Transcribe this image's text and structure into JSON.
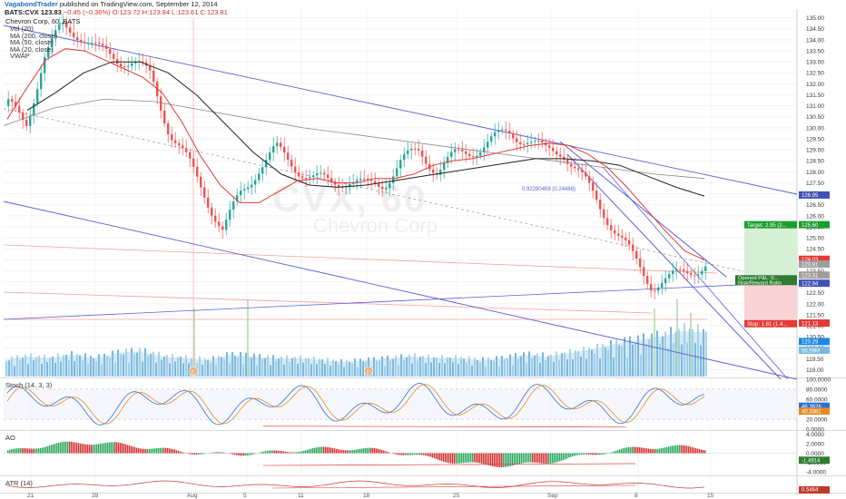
{
  "header": {
    "publisher": "VagabondTrader",
    "published_text": "published on TradingView.com, September 12, 2014",
    "symbol": "BATS:CVX",
    "last": "123.83",
    "change": "−0.45 (−0.36%)",
    "ohlc": "O:123.72 H:123.84 L:123.61 C:123.81"
  },
  "chart_title": "Chevron Corp, 60, BATS",
  "indicators": [
    "Vol (20)",
    "MA (200, close)",
    "MA (50, close)",
    "MA (20, close)",
    "VWAP"
  ],
  "watermark": {
    "symbol": "CVX, 60",
    "name": "Chevron Corp"
  },
  "pane_labels": {
    "stoch": "Stoch (14, 3, 3)",
    "ao": "AO",
    "atr": "ATR (14)"
  },
  "annotations": {
    "fib": "0.92280459 (0.24488)",
    "event_e": "E",
    "event_d": "D"
  },
  "price_axis": {
    "ticks": [
      "135.00",
      "134.50",
      "134.00",
      "133.50",
      "133.00",
      "132.50",
      "132.00",
      "131.50",
      "131.00",
      "130.50",
      "130.00",
      "129.50",
      "129.00",
      "128.50",
      "128.00",
      "127.50",
      "127.00",
      "126.50",
      "126.00",
      "125.50",
      "125.00",
      "124.50",
      "124.00",
      "123.50",
      "123.00",
      "122.50",
      "122.00",
      "121.50",
      "121.00",
      "120.50",
      "120.00",
      "119.50",
      "119.00"
    ],
    "flags": [
      {
        "text": "126.95",
        "color": "#3f51b5"
      },
      {
        "text": "125.60",
        "color": "#1b9e2e"
      },
      {
        "text": "124.03",
        "color": "#e53935"
      },
      {
        "text": "123.81",
        "color": "#9e9e9e"
      },
      {
        "text": "123.31",
        "color": "#9e9e9e"
      },
      {
        "text": "122.94",
        "color": "#3f51b5"
      },
      {
        "text": "121.13",
        "color": "#e53935"
      },
      {
        "text": "120.29",
        "color": "#1e88e5"
      },
      {
        "text": "56.59M",
        "color": "#7ab8de"
      }
    ]
  },
  "trade_box": {
    "target": "Target: 2.95 (2...",
    "open": "Opened P&L: 0...",
    "risk": "Risk/Reward Ratio",
    "stop": "Stop: 1.81 (1.4..."
  },
  "stoch_axis": {
    "ticks": [
      "100.0000",
      "80.0000",
      "60.0000",
      "40.0000",
      "20.0000",
      "0.0000"
    ],
    "flags": [
      "46.3626",
      "40.3381"
    ]
  },
  "ao_axis": {
    "ticks": [
      "4.0000",
      "2.0000",
      "0.0000",
      "-2.0000",
      "-4.0000"
    ],
    "flags": [
      "-1.4914"
    ]
  },
  "atr_axis": {
    "flags": [
      "0.5464"
    ]
  },
  "x_axis": {
    "ticks": [
      "21",
      "28",
      "Aug",
      "5",
      "11",
      "18",
      "25",
      "Sep",
      "8",
      "15"
    ]
  },
  "colors": {
    "up": "#26a69a",
    "down": "#ef5350",
    "ma20": "#e53935",
    "ma50": "#222222",
    "ma200": "#888888",
    "channel": "#5c5fd6",
    "volume": "#5ba8d8",
    "grid": "#eeeeee"
  },
  "chart_data": {
    "type": "line",
    "title": "Chevron Corp, 60, BATS",
    "symbol": "BATS:CVX",
    "ylim": [
      118.7,
      135.4
    ],
    "x_labels": [
      "21",
      "28",
      "Aug",
      "5",
      "11",
      "18",
      "25",
      "Sep",
      "8",
      "15"
    ],
    "series": [
      {
        "name": "Price (close, approx.)",
        "values": [
          131.0,
          130.2,
          133.2,
          134.6,
          134.3,
          133.5,
          133.2,
          133.0,
          132.3,
          129.9,
          128.5,
          127.0,
          125.3,
          127.0,
          128.2,
          129.0,
          128.3,
          127.7,
          127.5,
          127.7,
          127.3,
          127.5,
          128.5,
          128.9,
          128.1,
          128.7,
          129.0,
          129.4,
          129.8,
          129.5,
          128.9,
          129.0,
          127.8,
          126.6,
          125.3,
          124.0,
          122.9,
          123.1,
          123.5,
          123.8
        ]
      },
      {
        "name": "MA (20, close)",
        "values": [
          130.4,
          131.8,
          133.1,
          133.6,
          133.5,
          133.1,
          132.7,
          132.3,
          131.6,
          130.3,
          128.7,
          127.4,
          126.6,
          126.6,
          127.1,
          127.6,
          127.7,
          127.5,
          127.5,
          127.7,
          127.7,
          127.9,
          128.3,
          128.5,
          128.6,
          128.8,
          129.0,
          129.2,
          129.3,
          129.2,
          128.8,
          128.2,
          127.3,
          126.3,
          125.3,
          124.4,
          124.0
        ]
      },
      {
        "name": "MA (50, close)",
        "values": [
          130.8,
          131.6,
          132.5,
          133.0,
          133.0,
          132.5,
          131.5,
          130.2,
          128.9,
          127.9,
          127.4,
          127.3,
          127.4,
          127.6,
          127.8,
          128.0,
          128.2,
          128.4,
          128.6,
          128.6,
          128.5,
          128.3,
          127.8,
          127.3,
          126.9
        ]
      },
      {
        "name": "MA (200, close)",
        "values": [
          130.1,
          130.9,
          131.3,
          131.2,
          130.8,
          130.4,
          130.0,
          129.7,
          129.4,
          129.1,
          128.8,
          128.5,
          128.2,
          127.9,
          127.7
        ]
      },
      {
        "name": "Volume (relative)",
        "values": [
          0.9,
          1.1,
          1.0,
          1.2,
          1.0,
          1.3,
          1.4,
          1.1,
          1.0,
          0.9,
          1.2,
          1.1,
          1.0,
          1.0,
          0.9,
          0.8,
          0.9,
          1.0,
          1.1,
          1.0,
          1.0,
          0.9,
          1.0,
          1.2,
          1.1,
          1.3,
          1.5,
          1.8,
          2.0,
          2.2,
          2.5,
          2.4
        ]
      }
    ],
    "trendlines": [
      {
        "name": "channel upper",
        "from": [
          "start",
          133.8
        ],
        "to": [
          "end",
          127.2
        ]
      },
      {
        "name": "channel lower",
        "from": [
          "start",
          127.5
        ],
        "to": [
          "end",
          119.3
        ]
      },
      {
        "name": "descending channel upper",
        "from": [
          "Sep",
          129.9
        ],
        "to": [
          "15",
          124.0
        ]
      },
      {
        "name": "descending channel lower",
        "from": [
          "Sep",
          129.2
        ],
        "to": [
          "15",
          119.3
        ]
      }
    ],
    "trade": {
      "entry": 123.1,
      "target": 125.6,
      "stop": 121.1
    },
    "stoch": {
      "ylim": [
        0,
        100
      ],
      "levels": [
        80,
        20
      ]
    },
    "ao": {
      "ylim": [
        -4,
        4
      ]
    }
  }
}
